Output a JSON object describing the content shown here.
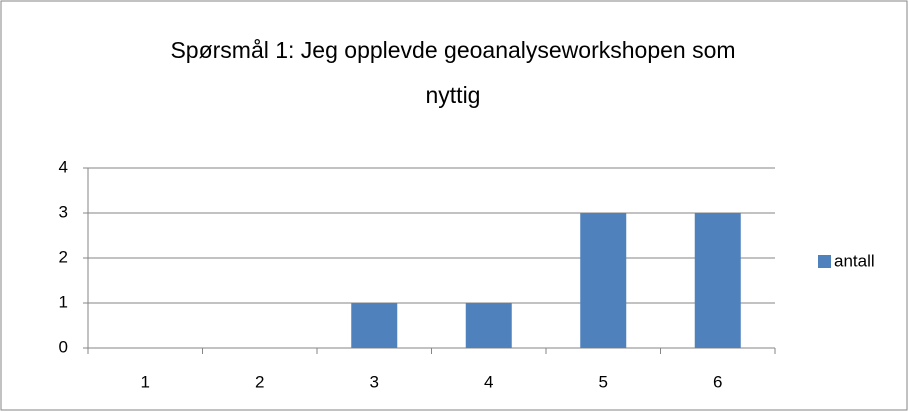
{
  "chart_data": {
    "type": "bar",
    "title": "Spørsmål 1: Jeg opplevde geoanalyseworkshopen som nyttig",
    "categories": [
      "1",
      "2",
      "3",
      "4",
      "5",
      "6"
    ],
    "series": [
      {
        "name": "antall",
        "color": "#4f81bd",
        "values": [
          0,
          0,
          1,
          1,
          3,
          3
        ]
      }
    ],
    "ylim": [
      0,
      4
    ],
    "yticks": [
      0,
      1,
      2,
      3,
      4
    ],
    "grid": true,
    "legend": "right"
  }
}
